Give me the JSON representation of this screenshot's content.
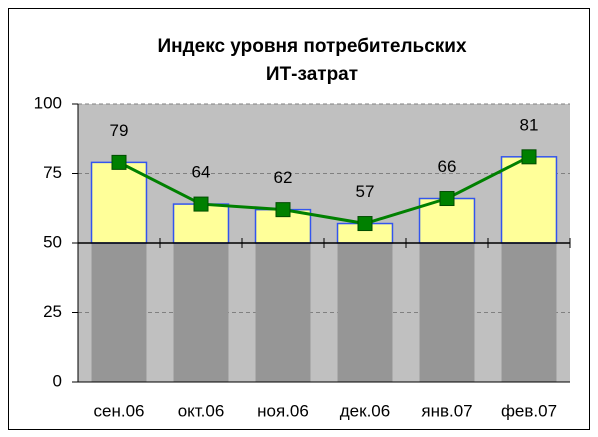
{
  "chart_data": {
    "type": "bar_line",
    "title": [
      "Индекс уровня  потребительских",
      "ИТ-затрат"
    ],
    "categories": [
      "сен.06",
      "окт.06",
      "ноя.06",
      "дек.06",
      "янв.07",
      "фев.07"
    ],
    "x_axis_crosses": 50,
    "lower_columns": {
      "color": "#969696",
      "values": [
        50,
        50,
        50,
        50,
        50,
        50
      ]
    },
    "series": [
      {
        "type": "bar",
        "color": "#ffff99",
        "edge_color": "#3355ee",
        "values": [
          79,
          64,
          62,
          57,
          66,
          81
        ]
      },
      {
        "type": "line",
        "color": "#008000",
        "values": [
          79,
          64,
          62,
          57,
          66,
          81
        ],
        "data_labels": true
      }
    ],
    "ylim": [
      0,
      100
    ],
    "yticks": [
      0,
      25,
      50,
      75,
      100
    ],
    "grid": true,
    "plot_background": "#c0c0c0"
  }
}
